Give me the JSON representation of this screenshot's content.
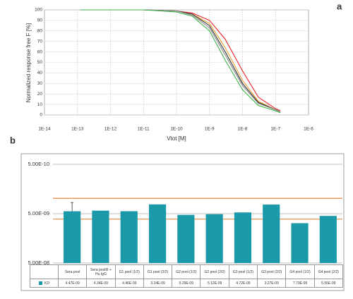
{
  "chart_data": [
    {
      "type": "line",
      "panel": "a",
      "x_label": "Vtot [M]",
      "y_label": "Normalized response free F [%]",
      "x": [
        1.2e-13,
        1e-12,
        1e-11,
        1e-10,
        3e-10,
        1e-09,
        3e-09,
        1e-08,
        3e-08,
        1e-07,
        1.4e-07
      ],
      "series": [
        {
          "color": "#e8262b",
          "values": [
            100,
            100,
            100,
            99,
            97,
            90,
            72,
            42,
            17,
            6,
            4
          ]
        },
        {
          "color": "#f0a030",
          "values": [
            100,
            100,
            100,
            99,
            96,
            87,
            64,
            33,
            13,
            5,
            3
          ]
        },
        {
          "color": "#333333",
          "values": [
            100,
            100,
            100,
            99,
            96,
            85,
            60,
            30,
            12,
            5,
            3
          ]
        },
        {
          "color": "#8a8a8a",
          "values": [
            100,
            100,
            100,
            99,
            95,
            83,
            57,
            28,
            11,
            5,
            3
          ]
        },
        {
          "color": "#3db34a",
          "values": [
            100,
            100,
            100,
            98,
            94,
            80,
            52,
            24,
            9,
            4,
            2
          ]
        }
      ],
      "log_x": true,
      "grid": true,
      "xlim": [
        1e-14,
        1e-06
      ],
      "xticks": [
        {
          "value": 1e-14,
          "label": "1E-14"
        },
        {
          "value": 1e-13,
          "label": "1E-13"
        },
        {
          "value": 1e-12,
          "label": "1E-12"
        },
        {
          "value": 1e-11,
          "label": "1E-11"
        },
        {
          "value": 1e-10,
          "label": "1E-10"
        },
        {
          "value": 1e-09,
          "label": "1E-9"
        },
        {
          "value": 1e-08,
          "label": "1E-8"
        },
        {
          "value": 1e-07,
          "label": "1E-7"
        },
        {
          "value": 1e-06,
          "label": "1E-6"
        }
      ],
      "ylim": [
        0,
        100
      ],
      "yticks": [
        0,
        10,
        20,
        30,
        40,
        50,
        60,
        70,
        80,
        90,
        100
      ]
    },
    {
      "type": "bar",
      "panel": "b",
      "categories": [
        "Sera pool",
        "Sera postIII + Hu IgG",
        "G1 pool (1/2)",
        "G1 pool (2/2)",
        "G2 pool (1/2)",
        "G2 pool (2/2)",
        "G3 pool (1/2)",
        "G3 pool (2/2)",
        "G4 pool (1/2)",
        "G4 pool (2/2)"
      ],
      "series": [
        {
          "name": "KD",
          "color": "#1a9aa8",
          "values": [
            4.47e-09,
            4.34e-09,
            4.46e-09,
            3.24e-09,
            5.29e-09,
            5.12e-09,
            4.72e-09,
            3.27e-09,
            7.79e-09,
            5.55e-09
          ],
          "value_labels": [
            "4.47E-09",
            "4.34E-09",
            "4.46E-09",
            "3.24E-09",
            "5.29E-09",
            "5.12E-09",
            "4.72E-09",
            "3.27E-09",
            "7.79E-09",
            "5.55E-09"
          ],
          "errors": [
            1.5e-09,
            null,
            null,
            null,
            null,
            null,
            null,
            null,
            null,
            null
          ]
        }
      ],
      "log_y": true,
      "grid": true,
      "ylim": [
        5e-08,
        5e-10
      ],
      "yticks": [
        {
          "value": 5e-10,
          "label": "5.00E-10"
        },
        {
          "value": 5e-09,
          "label": "5.00E-09"
        },
        {
          "value": 5e-08,
          "label": "5.00E-08"
        }
      ],
      "ref_lines": {
        "color": "#e87722",
        "values": [
          2.44e-09,
          6.45e-09
        ]
      }
    }
  ]
}
